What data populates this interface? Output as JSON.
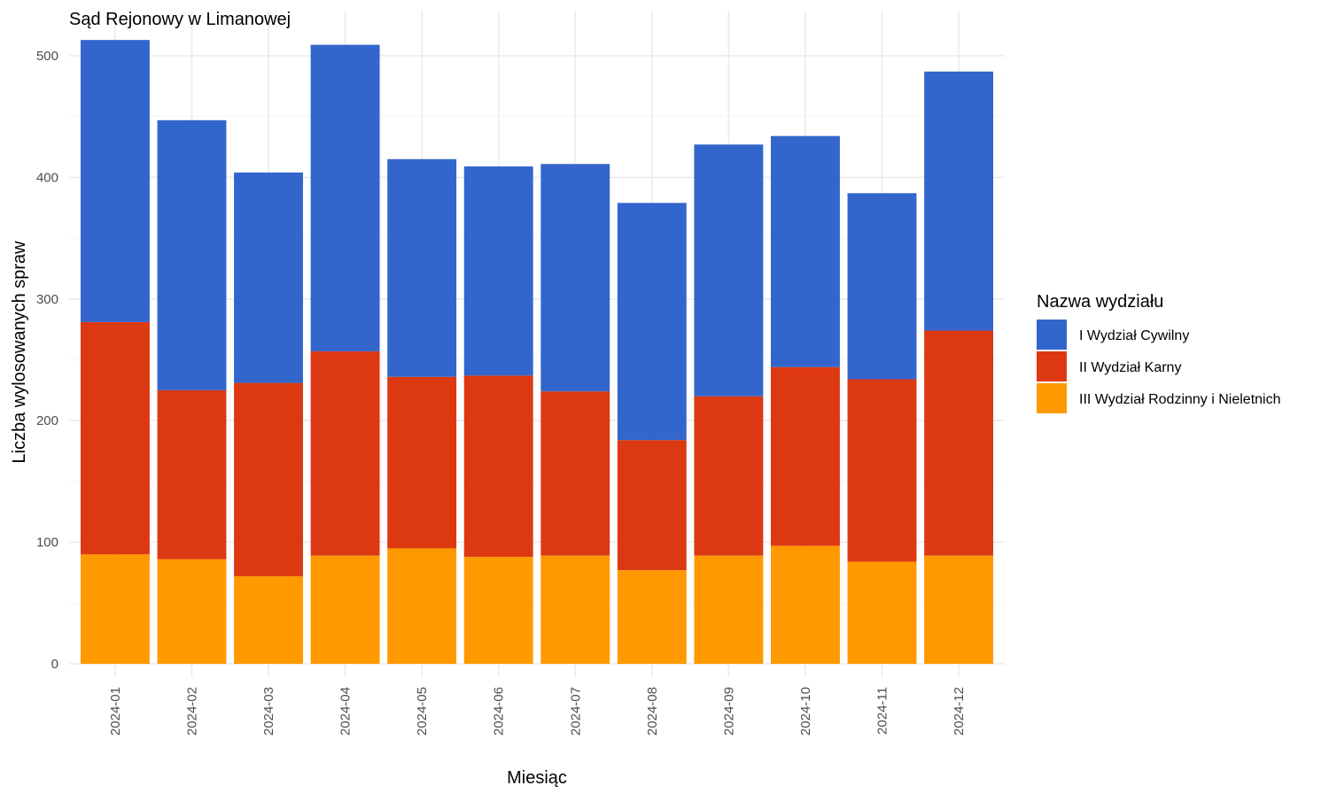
{
  "chart_data": {
    "type": "bar",
    "stacked": true,
    "title": "Sąd Rejonowy w Limanowej",
    "xlabel": "Miesiąc",
    "ylabel": "Liczba wylosowanych spraw",
    "ylim": [
      0,
      525
    ],
    "yticks": [
      0,
      100,
      200,
      300,
      400,
      500
    ],
    "grid": true,
    "legend_position": "right",
    "legend_title": "Nazwa wydziału",
    "categories": [
      "2024-01",
      "2024-02",
      "2024-03",
      "2024-04",
      "2024-05",
      "2024-06",
      "2024-07",
      "2024-08",
      "2024-09",
      "2024-10",
      "2024-11",
      "2024-12"
    ],
    "series": [
      {
        "name": "I Wydział Cywilny",
        "color": "#3366cc",
        "values": [
          232,
          222,
          173,
          252,
          179,
          172,
          187,
          195,
          207,
          190,
          153,
          213
        ]
      },
      {
        "name": "II Wydział Karny",
        "color": "#dc3912",
        "values": [
          191,
          139,
          159,
          168,
          141,
          149,
          135,
          107,
          131,
          147,
          150,
          185
        ]
      },
      {
        "name": "III Wydział Rodzinny i Nieletnich",
        "color": "#ff9900",
        "values": [
          90,
          86,
          72,
          89,
          95,
          88,
          89,
          77,
          89,
          97,
          84,
          89
        ]
      }
    ],
    "stack_order_bottom_to_top": [
      "III Wydział Rodzinny i Nieletnich",
      "II Wydział Karny",
      "I Wydział Cywilny"
    ]
  }
}
